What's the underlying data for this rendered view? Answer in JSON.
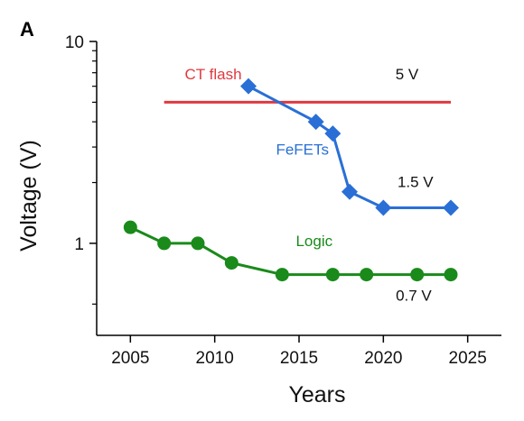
{
  "chart_data": {
    "type": "line",
    "panel_label": "A",
    "xlabel": "Years",
    "ylabel": "Voltage (V)",
    "xlim": [
      2003,
      2027
    ],
    "ylim": [
      0.35,
      10
    ],
    "yscale": "log",
    "x_ticks": [
      2005,
      2010,
      2015,
      2020,
      2025
    ],
    "y_ticks": [
      1,
      10
    ],
    "y_minor_ticks": [
      0.5,
      2,
      3,
      4,
      5,
      6,
      7,
      8,
      9
    ],
    "grid": false,
    "colors": {
      "ct_flash": "#e0383f",
      "fefets": "#2a6fd6",
      "logic": "#1a8a1a"
    },
    "series": [
      {
        "name": "CT flash",
        "style": "line",
        "points": [
          [
            2007,
            5
          ],
          [
            2024,
            5
          ]
        ]
      },
      {
        "name": "FeFETs",
        "marker": "diamond",
        "points": [
          [
            2012,
            6
          ],
          [
            2016,
            4
          ],
          [
            2017,
            3.5
          ],
          [
            2018,
            1.8
          ],
          [
            2020,
            1.5
          ],
          [
            2024,
            1.5
          ]
        ]
      },
      {
        "name": "Logic",
        "marker": "circle",
        "points": [
          [
            2005,
            1.2
          ],
          [
            2007,
            1.0
          ],
          [
            2009,
            1.0
          ],
          [
            2011,
            0.8
          ],
          [
            2014,
            0.7
          ],
          [
            2017,
            0.7
          ],
          [
            2019,
            0.7
          ],
          [
            2022,
            0.7
          ],
          [
            2024,
            0.7
          ]
        ]
      }
    ],
    "annotations": [
      {
        "text": "CT flash",
        "series": "CT flash"
      },
      {
        "text": "5 V",
        "series": "CT flash"
      },
      {
        "text": "FeFETs",
        "series": "FeFETs"
      },
      {
        "text": "1.5 V",
        "series": "FeFETs"
      },
      {
        "text": "Logic",
        "series": "Logic"
      },
      {
        "text": "0.7 V",
        "series": "Logic"
      }
    ]
  }
}
